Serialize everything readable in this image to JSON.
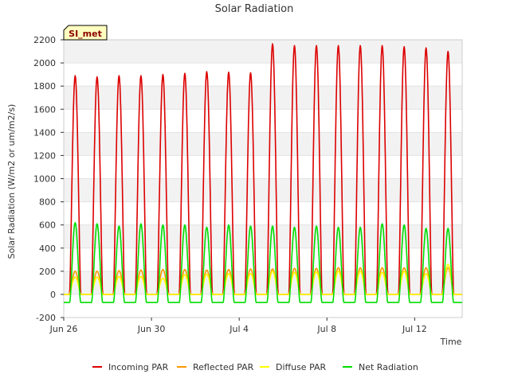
{
  "chart_data": {
    "type": "line",
    "title": "Solar Radiation",
    "xlabel": "Time",
    "ylabel": "Solar Radiation (W/m2 or um/m2/s)",
    "badge": "SI_met",
    "ylim": [
      -200,
      2200
    ],
    "yticks": [
      -200,
      0,
      200,
      400,
      600,
      800,
      1000,
      1200,
      1400,
      1600,
      1800,
      2000,
      2200
    ],
    "xlim": [
      "2023-06-26",
      "2023-07-14T04:00"
    ],
    "xticks": [
      "Jun 26",
      "Jun 30",
      "Jul 4",
      "Jul 8",
      "Jul 12"
    ],
    "grid": "horizontal bands",
    "legend_position": "bottom",
    "days": [
      "Jun 26",
      "Jun 27",
      "Jun 28",
      "Jun 29",
      "Jun 30",
      "Jul 1",
      "Jul 2",
      "Jul 3",
      "Jul 4",
      "Jul 5",
      "Jul 6",
      "Jul 7",
      "Jul 8",
      "Jul 9",
      "Jul 10",
      "Jul 11",
      "Jul 12",
      "Jul 13"
    ],
    "series": [
      {
        "name": "Incoming PAR",
        "color": "#dd0000",
        "daily_peak": [
          1890,
          1880,
          1890,
          1890,
          1900,
          1910,
          1925,
          1920,
          1915,
          2165,
          2150,
          2150,
          2150,
          2150,
          2150,
          2140,
          2130,
          2100
        ],
        "night_value": 0
      },
      {
        "name": "Reflected PAR",
        "color": "#ff9900",
        "daily_peak": [
          200,
          200,
          205,
          210,
          215,
          215,
          210,
          215,
          220,
          220,
          225,
          225,
          230,
          230,
          230,
          230,
          230,
          230
        ],
        "night_value": 0
      },
      {
        "name": "Diffuse PAR",
        "color": "#ffff00",
        "daily_peak": [
          150,
          150,
          155,
          155,
          140,
          170,
          175,
          180,
          180,
          200,
          190,
          195,
          200,
          200,
          190,
          200,
          180,
          260
        ],
        "night_value": 0
      },
      {
        "name": "Net Radiation",
        "color": "#00dd00",
        "daily_peak": [
          620,
          610,
          590,
          610,
          600,
          600,
          580,
          600,
          590,
          590,
          580,
          590,
          580,
          580,
          610,
          600,
          570,
          570
        ],
        "night_value": -70
      }
    ]
  }
}
